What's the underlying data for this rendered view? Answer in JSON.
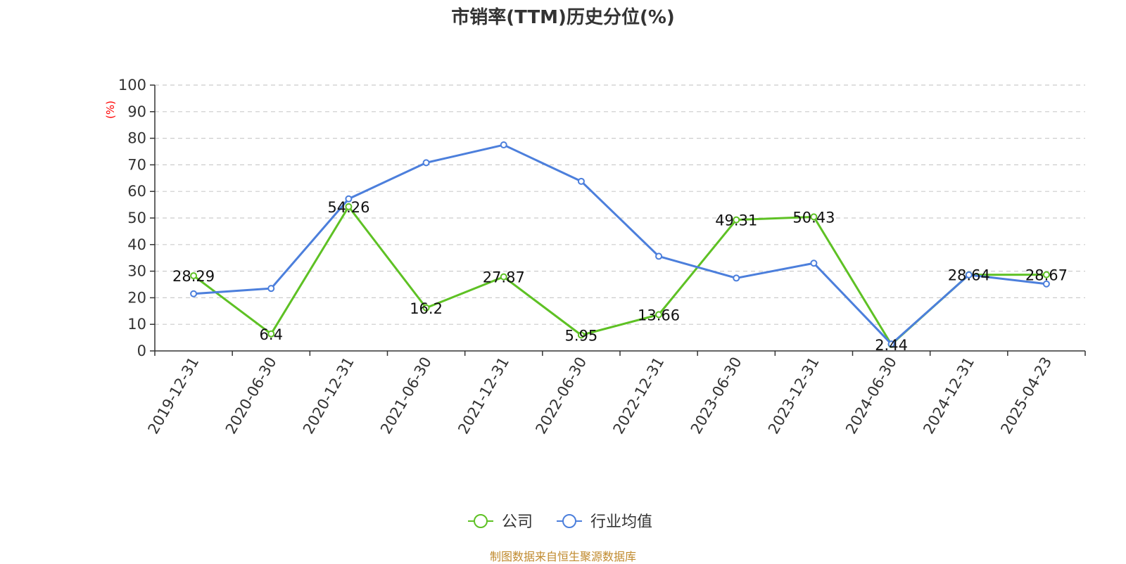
{
  "chart_data": {
    "type": "line",
    "title": "市销率(TTM)历史分位(%)",
    "ylabel": "(%)",
    "xlabel": "",
    "ylim": [
      0,
      100
    ],
    "yticks": [
      0,
      10,
      20,
      30,
      40,
      50,
      60,
      70,
      80,
      90,
      100
    ],
    "grid": true,
    "legend_position": "bottom-center",
    "categories": [
      "2019-12-31",
      "2020-06-30",
      "2020-12-31",
      "2021-06-30",
      "2021-12-31",
      "2022-06-30",
      "2022-12-31",
      "2023-06-30",
      "2023-12-31",
      "2024-06-30",
      "2024-12-31",
      "2025-04-23"
    ],
    "series": [
      {
        "name": "公司",
        "color": "#5ec124",
        "values": [
          28.29,
          6.4,
          54.26,
          16.2,
          27.87,
          5.95,
          13.66,
          49.31,
          50.43,
          2.44,
          28.64,
          28.67
        ],
        "show_labels": true
      },
      {
        "name": "行业均值",
        "color": "#4c7fdc",
        "values": [
          21.5,
          23.5,
          57.2,
          70.8,
          77.5,
          63.8,
          35.6,
          27.4,
          33.0,
          2.6,
          28.6,
          25.2
        ],
        "show_labels": false
      }
    ],
    "ylabel_color": "#ff0000",
    "source": "制图数据来自恒生聚源数据库"
  }
}
